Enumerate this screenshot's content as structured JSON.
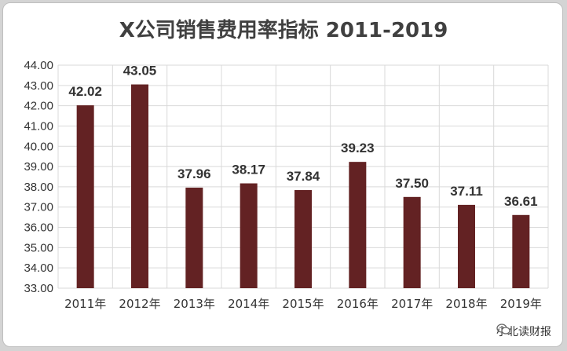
{
  "chart_data": {
    "type": "bar",
    "title": "X公司销售费用率指标 2011-2019",
    "categories": [
      "2011年",
      "2012年",
      "2013年",
      "2014年",
      "2015年",
      "2016年",
      "2017年",
      "2018年",
      "2019年"
    ],
    "values": [
      42.02,
      43.05,
      37.96,
      38.17,
      37.84,
      39.23,
      37.5,
      37.11,
      36.61
    ],
    "value_labels": [
      "42.02",
      "43.05",
      "37.96",
      "38.17",
      "37.84",
      "39.23",
      "37.50",
      "37.11",
      "36.61"
    ],
    "ylim": [
      33,
      44
    ],
    "yticks": [
      "33.00",
      "34.00",
      "35.00",
      "36.00",
      "37.00",
      "38.00",
      "39.00",
      "40.00",
      "41.00",
      "42.00",
      "43.00",
      "44.00"
    ],
    "grid": "both",
    "bar_color": "#632223",
    "xlabel": "",
    "ylabel": ""
  },
  "watermark": {
    "text": "小北读财报",
    "icon": "wechat-icon"
  }
}
